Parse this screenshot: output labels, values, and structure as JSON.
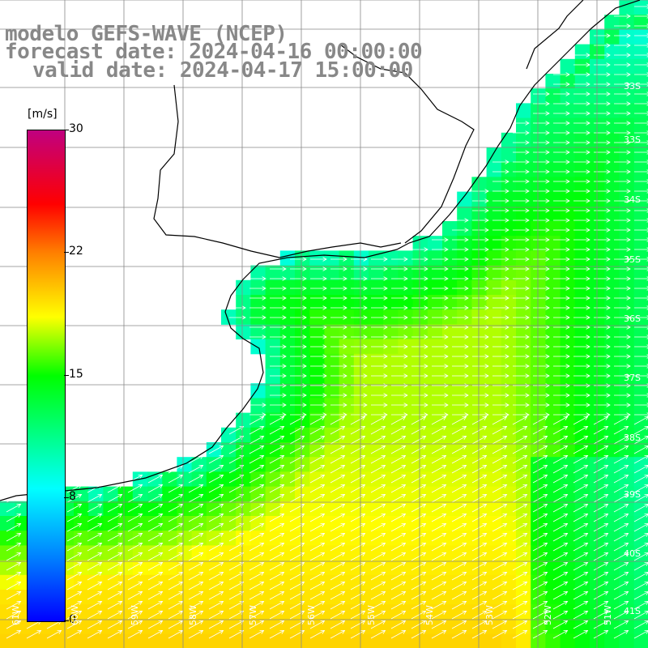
{
  "title": {
    "line1": "modelo GEFS-WAVE (NCEP)",
    "line2": "forecast date: 2024-04-16 00:00:00",
    "line3": "valid date: 2024-04-17 15:00:00"
  },
  "colorbar": {
    "units": "[m/s]",
    "ticks": [
      {
        "value": 30,
        "label": "30"
      },
      {
        "value": 22,
        "label": "22"
      },
      {
        "value": 15,
        "label": "15"
      },
      {
        "value": 8,
        "label": "8"
      },
      {
        "value": 0,
        "label": "0"
      }
    ],
    "range": [
      0,
      30
    ],
    "colors": [
      "#0000ff",
      "#0080ff",
      "#00ffff",
      "#00ff00",
      "#ffff00",
      "#ff8000",
      "#ff0000",
      "#c00080"
    ]
  },
  "map": {
    "lat_labels": [
      "33S",
      "34S",
      "35S",
      "36S",
      "37S",
      "38S",
      "39S",
      "40S",
      "41S"
    ],
    "lon_labels": [
      "61W",
      "60W",
      "59W",
      "58W",
      "57W",
      "56W",
      "55W",
      "54W",
      "53W",
      "52W",
      "51W"
    ],
    "vector_direction": "east / north-east",
    "land_color": "#ffffff",
    "grid_color": "#888888",
    "coast_color": "#000000"
  }
}
